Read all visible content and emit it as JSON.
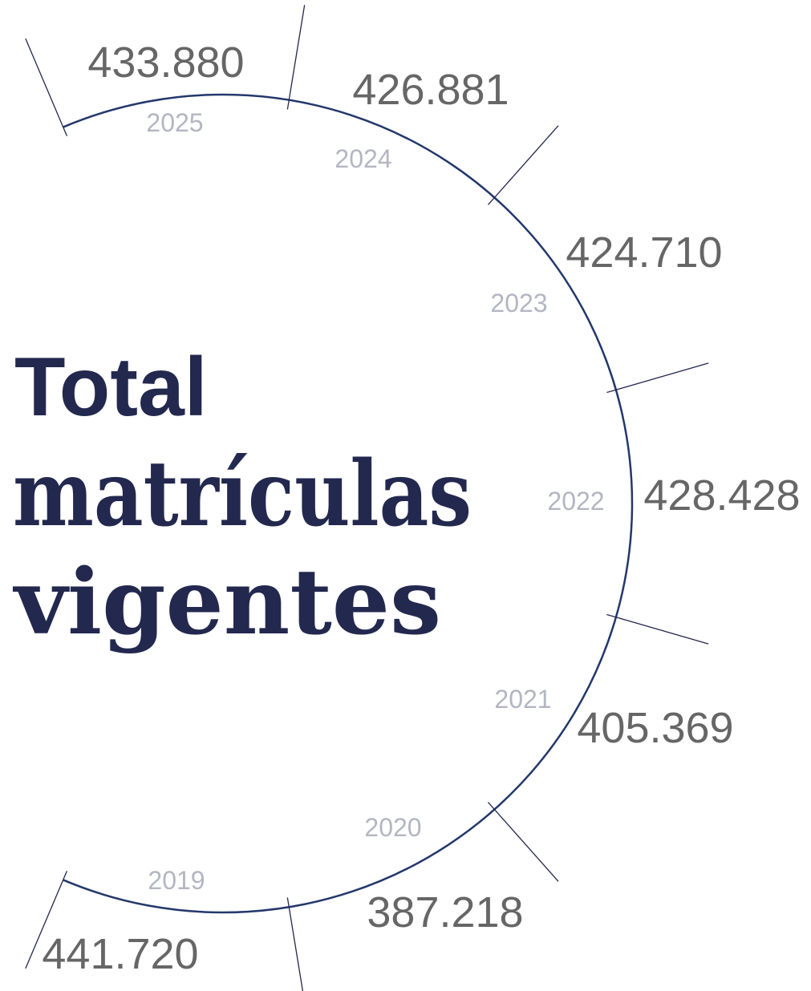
{
  "title": {
    "line1": "Total",
    "line2": "matrículas",
    "line3": "vigentes"
  },
  "items": [
    {
      "year": "2025",
      "value": "433.880"
    },
    {
      "year": "2024",
      "value": "426.881"
    },
    {
      "year": "2023",
      "value": "424.710"
    },
    {
      "year": "2022",
      "value": "428.428"
    },
    {
      "year": "2021",
      "value": "405.369"
    },
    {
      "year": "2020",
      "value": "387.218"
    },
    {
      "year": "2019",
      "value": "441.720"
    }
  ]
}
